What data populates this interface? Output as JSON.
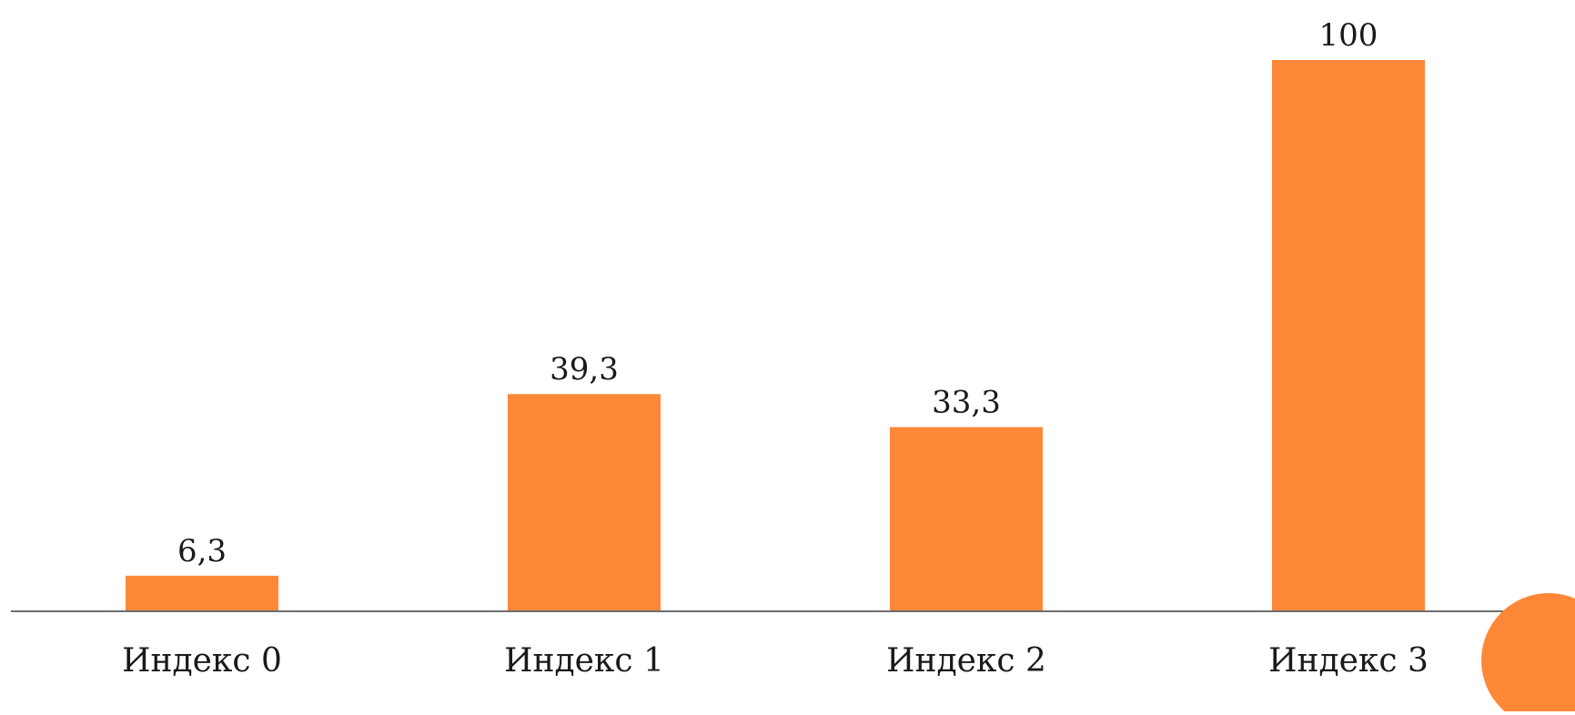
{
  "colors": {
    "bar": "#FF8838",
    "axis": "#6E6E6E",
    "accent_circle": "#FF8838",
    "text": "#1A1A1A"
  },
  "chart_data": {
    "type": "bar",
    "categories": [
      "Индекс 0",
      "Индекс 1",
      "Индекс 2",
      "Индекс 3"
    ],
    "values": [
      6.3,
      39.3,
      33.3,
      100
    ],
    "data_labels": [
      "6,3",
      "39,3",
      "33,3",
      "100"
    ],
    "title": "",
    "xlabel": "",
    "ylabel": "",
    "ylim": [
      0,
      100
    ],
    "grid": false,
    "legend": "none",
    "y_axis_visible": false
  }
}
